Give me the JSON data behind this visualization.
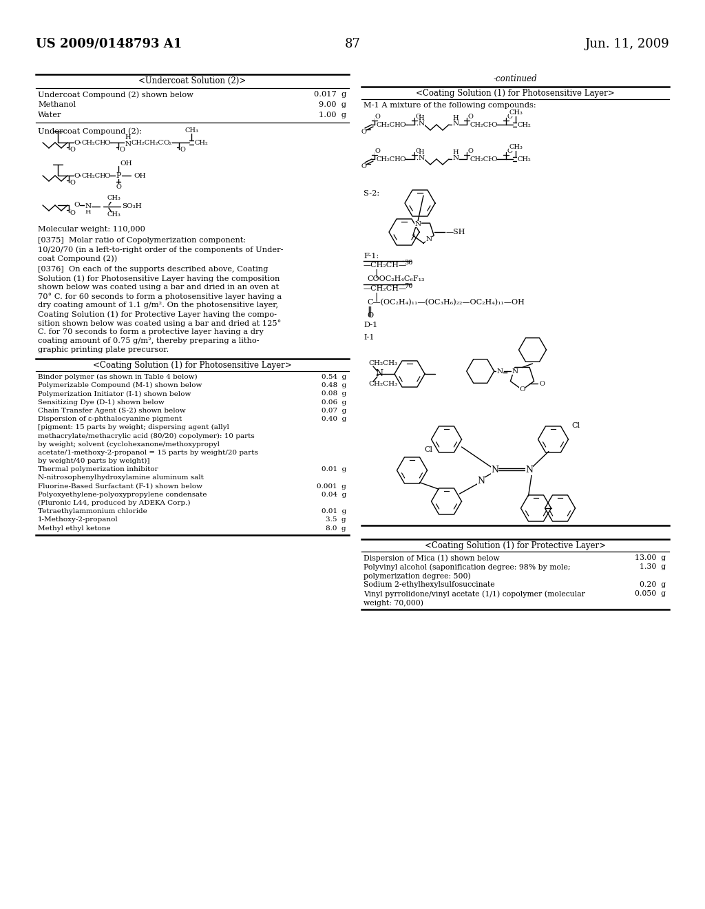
{
  "patent_number": "US 2009/0148793 A1",
  "patent_date": "Jun. 11, 2009",
  "page_number": "87",
  "left_table1_title": "<Undercoat Solution (2)>",
  "left_table1_rows": [
    [
      "Undercoat Compound (2) shown below",
      "0.017  g"
    ],
    [
      "Methanol",
      "9.00  g"
    ],
    [
      "Water",
      "1.00  g"
    ]
  ],
  "undercoat_label": "Undercoat Compound (2):",
  "mol_weight": "Molecular weight: 110,000",
  "para375": "[0375]  Molar ratio of Copolymerization component: 10/20/70 (in a left-to-right order of the components of Undercoat Compound (2))",
  "para376_lines": [
    "[0376]  On each of the supports described above, Coating",
    "Solution (1) for Photosensitive Layer having the composition",
    "shown below was coated using a bar and dried in an oven at",
    "70° C. for 60 seconds to form a photosensitive layer having a",
    "dry coating amount of 1.1 g/m². On the photosensitive layer,",
    "Coating Solution (1) for Protective Layer having the compo-",
    "sition shown below was coated using a bar and dried at 125°",
    "C. for 70 seconds to form a protective layer having a dry",
    "coating amount of 0.75 g/m², thereby preparing a litho-",
    "graphic printing plate precursor."
  ],
  "left_table2_title": "<Coating Solution (1) for Photosensitive Layer>",
  "left_table2_rows": [
    [
      "Binder polymer (as shown in Table 4 below)",
      "0.54  g"
    ],
    [
      "Polymerizable Compound (M-1) shown below",
      "0.48  g"
    ],
    [
      "Polymerization Initiator (I-1) shown below",
      "0.08  g"
    ],
    [
      "Sensitizing Dye (D-1) shown below",
      "0.06  g"
    ],
    [
      "Chain Transfer Agent (S-2) shown below",
      "0.07  g"
    ],
    [
      "Dispersion of ε-phthalocyanine pigment",
      "0.40  g"
    ],
    [
      "[pigment: 15 parts by weight; dispersing agent (allyl",
      ""
    ],
    [
      "methacrylate/methacrylic acid (80/20) copolymer): 10 parts",
      ""
    ],
    [
      "by weight; solvent (cyclohexanone/methoxypropyl",
      ""
    ],
    [
      "acetate/1-methoxy-2-propanol = 15 parts by weight/20 parts",
      ""
    ],
    [
      "by weight/40 parts by weight)]",
      ""
    ],
    [
      "Thermal polymerization inhibitor",
      "0.01  g"
    ],
    [
      "N-nitrosophenylhydroxylamine aluminum salt",
      ""
    ],
    [
      "Fluorine-Based Surfactant (F-1) shown below",
      "0.001  g"
    ],
    [
      "Polyoxyethylene-polyoxypropylene condensate",
      "0.04  g"
    ],
    [
      "(Pluronic L44, produced by ADEKA Corp.)",
      ""
    ],
    [
      "Tetraethylammonium chloride",
      "0.01  g"
    ],
    [
      "1-Methoxy-2-propanol",
      "3.5  g"
    ],
    [
      "Methyl ethyl ketone",
      "8.0  g"
    ]
  ],
  "right_continued": "-continued",
  "right_table1_title": "<Coating Solution (1) for Photosensitive Layer>",
  "right_m1_note": "M-1 A mixture of the following compounds:",
  "right_s2_label": "S-2:",
  "right_f1_label": "F-1:",
  "right_d1_label": "D-1",
  "right_i1_label": "I-1",
  "right_table2_title": "<Coating Solution (1) for Protective Layer>",
  "right_table2_rows": [
    [
      "Dispersion of Mica (1) shown below",
      "13.00  g"
    ],
    [
      "Polyvinyl alcohol (saponification degree: 98% by mole;",
      "1.30  g"
    ],
    [
      "polymerization degree: 500)",
      ""
    ],
    [
      "Sodium 2-ethylhexylsulfosuccinate",
      "0.20  g"
    ],
    [
      "Vinyl pyrrolidone/vinyl acetate (1/1) copolymer (molecular",
      "0.050  g"
    ],
    [
      "weight: 70,000)",
      ""
    ]
  ]
}
